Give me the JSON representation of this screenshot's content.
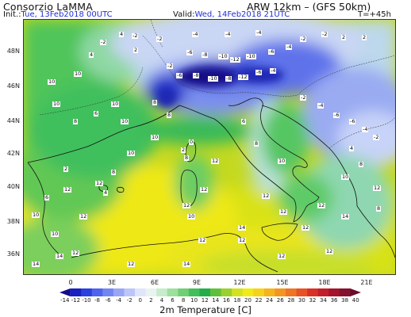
{
  "header": {
    "org": "Consorzio LaMMA",
    "model": "ARW 12km – (GFS 50km)",
    "init_label": "Init.:",
    "init_value": "Tue, 13Feb2018 00UTC",
    "valid_label": "Valid:",
    "valid_value": "Wed, 14Feb2018 21UTC",
    "step": "T=+45h"
  },
  "axes": {
    "lat_labels": [
      "48N",
      "46N",
      "44N",
      "42N",
      "40N",
      "38N",
      "36N"
    ],
    "lon_labels": [
      "0",
      "3E",
      "6E",
      "9E",
      "12E",
      "15E",
      "18E",
      "21E"
    ]
  },
  "legend": {
    "title": "2m Temperature [C]",
    "ticks": [
      "-14",
      "-12",
      "-10",
      "-8",
      "-6",
      "-4",
      "-2",
      "0",
      "2",
      "4",
      "6",
      "8",
      "10",
      "12",
      "14",
      "16",
      "18",
      "20",
      "22",
      "24",
      "26",
      "28",
      "30",
      "32",
      "34",
      "36",
      "38",
      "40"
    ],
    "colors": [
      "#130a8e",
      "#1b1fbf",
      "#2c3fe0",
      "#4f63ee",
      "#7186f2",
      "#98a6f5",
      "#bcc6f8",
      "#dfe5fb",
      "#e9f4f1",
      "#c6eccb",
      "#9ddf9c",
      "#6fcf74",
      "#42bf5a",
      "#24ae49",
      "#5fc13a",
      "#9bd12f",
      "#d2e21f",
      "#f2ea15",
      "#f7d21a",
      "#f6b41c",
      "#f39521",
      "#ef7423",
      "#e95126",
      "#d93127",
      "#c21f2a",
      "#a4142d",
      "#85102d",
      "#6a0c2b"
    ]
  },
  "map": {
    "temperature_labels": [
      "-2",
      "-2",
      "-4",
      "-4",
      "-4",
      "-6",
      "-8",
      "-10",
      "-12",
      "-10",
      "-6",
      "-4",
      "-2",
      "-2",
      "2",
      "2",
      "-2",
      "-6",
      "-8",
      "-10",
      "-8",
      "-12",
      "-6",
      "-4",
      "2",
      "4",
      "-2",
      "4",
      "10",
      "10",
      "10",
      "8",
      "6",
      "10",
      "10",
      "8",
      "8",
      "0",
      "2",
      "8",
      "12",
      "12",
      "12",
      "10",
      "12",
      "12",
      "12",
      "10",
      "12",
      "12",
      "14",
      "14",
      "14",
      "12",
      "12",
      "12",
      "-2",
      "-4",
      "-6",
      "-6",
      "-4",
      "-2",
      "4",
      "8",
      "10",
      "12",
      "12",
      "14",
      "10",
      "8",
      "6",
      "12",
      "12",
      "14",
      "12",
      "12",
      "10",
      "10",
      "8",
      "4",
      "2",
      "6",
      "10",
      "8"
    ]
  }
}
